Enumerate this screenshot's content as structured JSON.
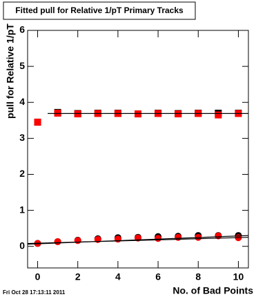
{
  "chart_data": {
    "type": "scatter",
    "title": "Fitted pull for Relative 1/pT Primary Tracks",
    "y_label": "pull for Relative 1/pT",
    "x_label": "No. of Bad Points",
    "footer": "Fri Oct 28 17:13:11 2011",
    "xlim": [
      -0.5,
      10.5
    ],
    "ylim": [
      -0.6,
      6
    ],
    "xticks": [
      0,
      2,
      4,
      6,
      8,
      10
    ],
    "yticks": [
      0,
      1,
      2,
      3,
      4,
      5,
      6
    ],
    "x": [
      0,
      1,
      2,
      3,
      4,
      5,
      6,
      7,
      8,
      9,
      10
    ],
    "series": [
      {
        "marker": "square",
        "color": "#000000",
        "values": [
          3.45,
          3.72,
          3.69,
          3.7,
          3.7,
          3.68,
          3.7,
          3.69,
          3.7,
          3.7,
          3.7
        ]
      },
      {
        "marker": "square",
        "color": "#ff0000",
        "values": [
          3.45,
          3.7,
          3.68,
          3.69,
          3.69,
          3.68,
          3.69,
          3.68,
          3.69,
          3.65,
          3.69
        ]
      },
      {
        "marker": "circle",
        "color": "#000000",
        "values": [
          0.08,
          0.13,
          0.17,
          0.21,
          0.24,
          0.25,
          0.27,
          0.28,
          0.3,
          0.3,
          0.3
        ]
      },
      {
        "marker": "circle",
        "color": "#ff0000",
        "values": [
          0.08,
          0.13,
          0.16,
          0.19,
          0.2,
          0.23,
          0.22,
          0.25,
          0.25,
          0.29,
          0.24
        ]
      },
      {
        "marker": "line",
        "color": "#000000",
        "x": [
          0.5,
          10.5
        ],
        "values": [
          3.69,
          3.69
        ]
      },
      {
        "marker": "line",
        "color": "#000000",
        "x": [
          -0.5,
          10.5
        ],
        "values": [
          0.06,
          0.3
        ]
      },
      {
        "marker": "line",
        "color": "#000000",
        "x": [
          -0.5,
          10.5
        ],
        "values": [
          0.08,
          0.25
        ]
      }
    ]
  }
}
